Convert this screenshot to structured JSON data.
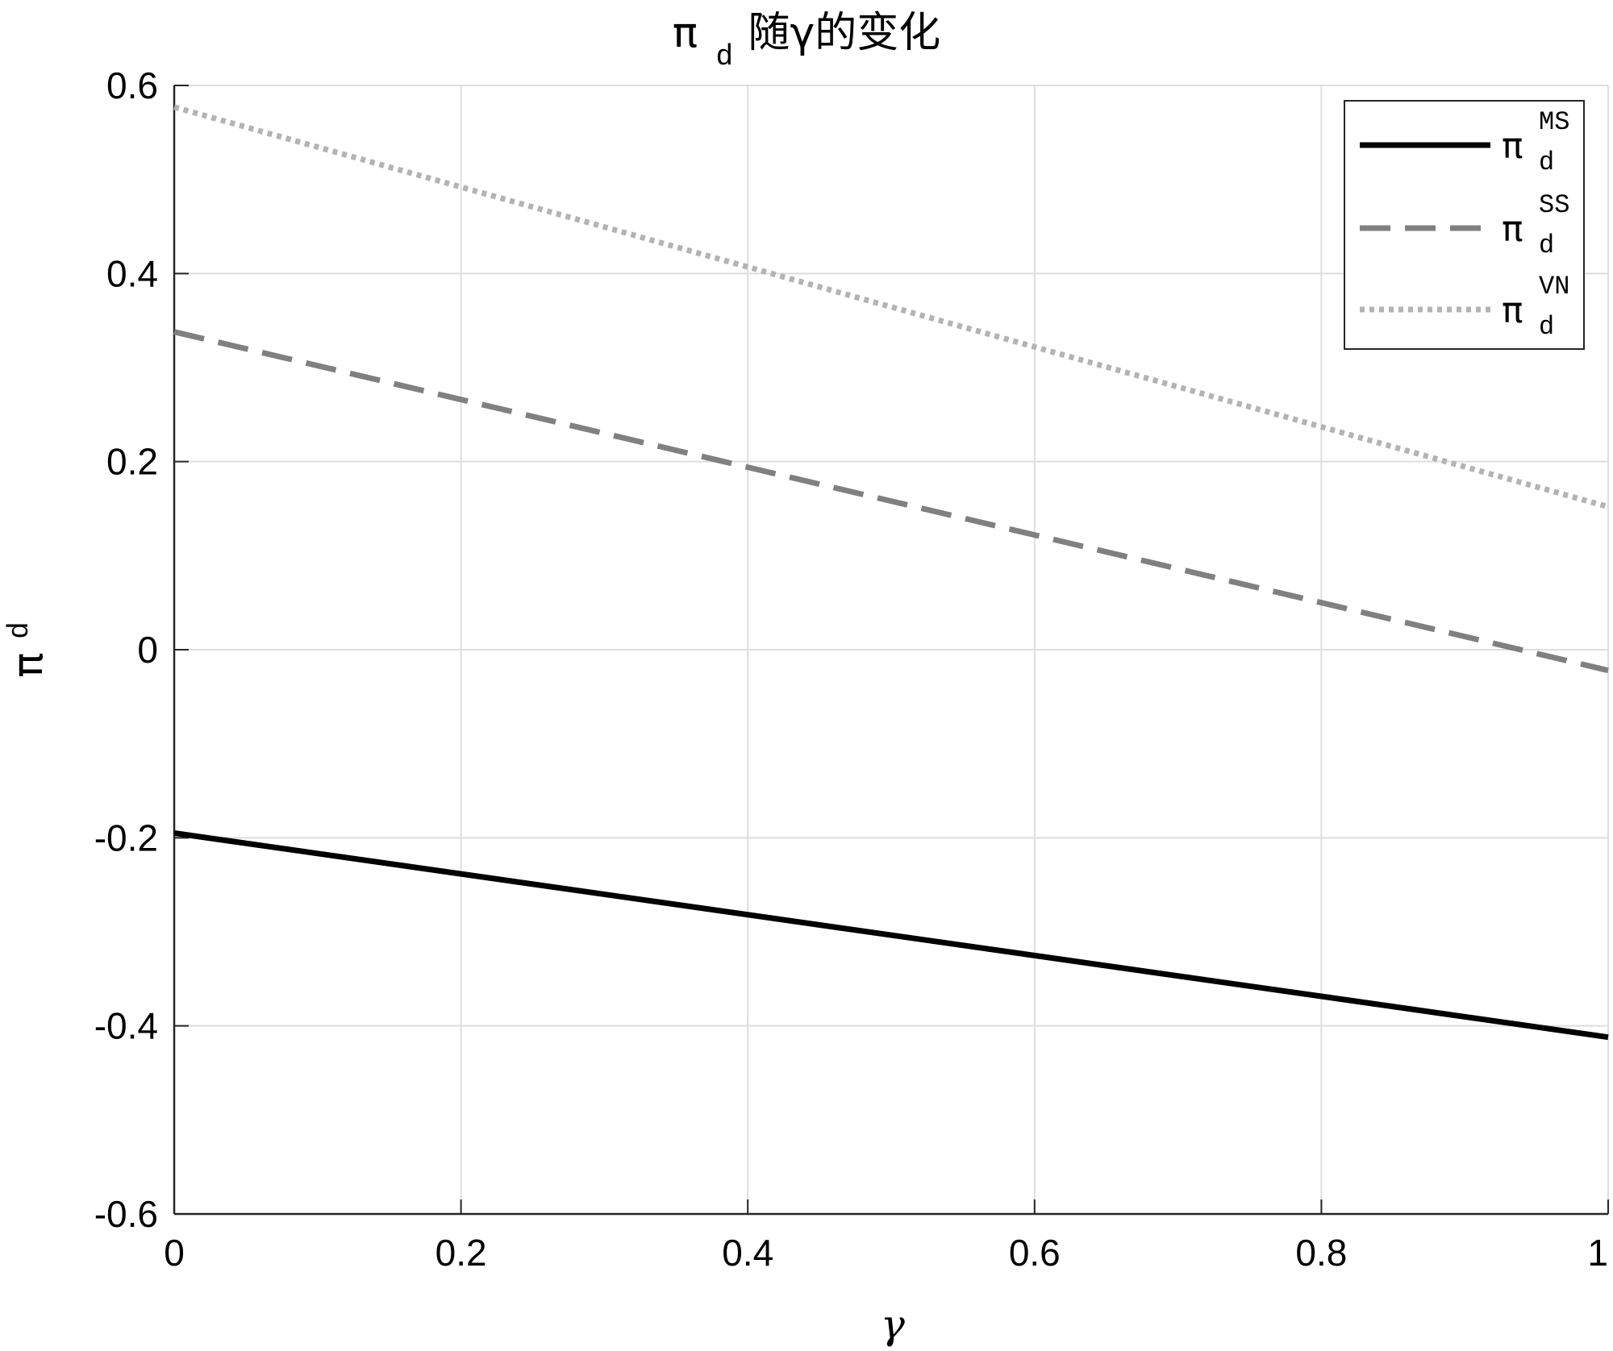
{
  "chart_data": {
    "type": "line",
    "title": {
      "symbol": "π",
      "subscript": "d",
      "text": "随γ的变化"
    },
    "xlabel": "γ",
    "ylabel": {
      "symbol": "π",
      "subscript": "d"
    },
    "xlim": [
      0,
      1
    ],
    "ylim": [
      -0.6,
      0.6
    ],
    "xticks": [
      0,
      0.2,
      0.4,
      0.6,
      0.8,
      1
    ],
    "xtick_labels": [
      "0",
      "0.2",
      "0.4",
      "0.6",
      "0.8",
      "1"
    ],
    "yticks": [
      -0.6,
      -0.4,
      -0.2,
      0,
      0.2,
      0.4,
      0.6
    ],
    "ytick_labels": [
      "-0.6",
      "-0.4",
      "-0.2",
      "0",
      "0.2",
      "0.4",
      "0.6"
    ],
    "grid": true,
    "legend_position": "top-right",
    "series": [
      {
        "symbol": "π",
        "subscript": "d",
        "superscript": "MS",
        "style": "solid",
        "color": "#000000",
        "x": [
          0,
          1
        ],
        "y": [
          -0.195,
          -0.412
        ]
      },
      {
        "symbol": "π",
        "subscript": "d",
        "superscript": "SS",
        "style": "dashed",
        "color": "#808080",
        "x": [
          0,
          1
        ],
        "y": [
          0.338,
          -0.022
        ]
      },
      {
        "symbol": "π",
        "subscript": "d",
        "superscript": "VN",
        "style": "dotted",
        "color": "#b3b3b3",
        "x": [
          0,
          1
        ],
        "y": [
          0.577,
          0.152
        ]
      }
    ]
  }
}
